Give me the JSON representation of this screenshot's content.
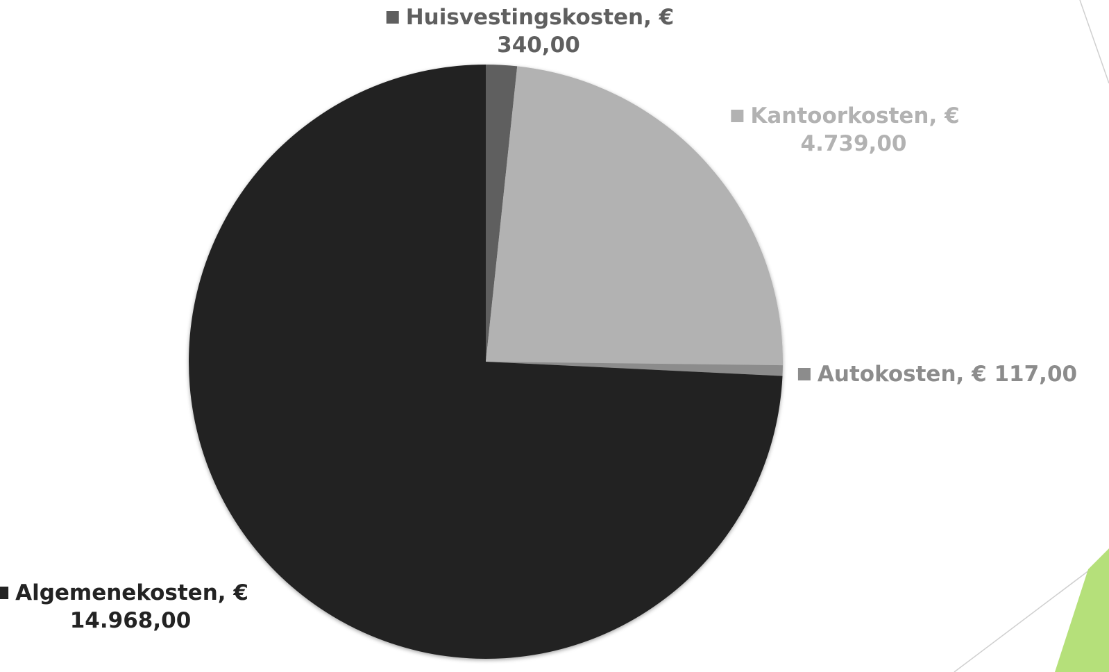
{
  "chart_data": {
    "type": "pie",
    "title": "",
    "start_angle_deg": 0,
    "direction": "clockwise",
    "slices": [
      {
        "name": "Huisvestingskosten",
        "value": 340.0,
        "label_line1": "Huisvestingskosten, €",
        "label_line2": "340,00",
        "color": "#5f5f5f",
        "label_color": "#5f5f5f"
      },
      {
        "name": "Kantoorkosten",
        "value": 4739.0,
        "label_line1": "Kantoorkosten, €",
        "label_line2": "4.739,00",
        "color": "#b2b2b2",
        "label_color": "#b2b2b2"
      },
      {
        "name": "Autokosten",
        "value": 117.0,
        "label_line1": "Autokosten, € 117,00",
        "label_line2": "",
        "color": "#8c8c8c",
        "label_color": "#8c8c8c"
      },
      {
        "name": "Algemenekosten",
        "value": 14968.0,
        "label_line1": "Algemenekosten, €",
        "label_line2": "14.968,00",
        "color": "#232323",
        "label_color": "#232323"
      }
    ]
  },
  "decoration": {
    "accent_green": "#b5e07a",
    "accent_line": "#cfcfcf"
  }
}
